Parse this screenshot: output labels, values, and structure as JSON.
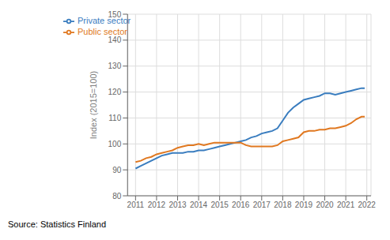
{
  "chart_data": {
    "type": "line",
    "ylabel": "Index (2015=100)",
    "annotation": "Source: Statistics Finland",
    "x": [
      2011.0,
      2011.25,
      2011.5,
      2011.75,
      2012.0,
      2012.25,
      2012.5,
      2012.75,
      2013.0,
      2013.25,
      2013.5,
      2013.75,
      2014.0,
      2014.25,
      2014.5,
      2014.75,
      2015.0,
      2015.25,
      2015.5,
      2015.75,
      2016.0,
      2016.25,
      2016.5,
      2016.75,
      2017.0,
      2017.25,
      2017.5,
      2017.75,
      2018.0,
      2018.25,
      2018.5,
      2018.75,
      2019.0,
      2019.25,
      2019.5,
      2019.75,
      2020.0,
      2020.25,
      2020.5,
      2020.75,
      2021.0,
      2021.25,
      2021.5,
      2021.75,
      2021.9
    ],
    "series": [
      {
        "name": "Private sector",
        "color": "#3a7dbf",
        "values": [
          90.5,
          91.5,
          92.5,
          93.5,
          94.5,
          95.5,
          96.0,
          96.5,
          96.5,
          96.5,
          97.0,
          97.0,
          97.5,
          97.5,
          98.0,
          98.5,
          99.0,
          99.5,
          100.0,
          100.5,
          101.0,
          101.5,
          102.5,
          103.0,
          104.0,
          104.5,
          105.0,
          106.0,
          109.0,
          112.0,
          114.0,
          115.5,
          117.0,
          117.5,
          118.0,
          118.5,
          119.5,
          119.5,
          119.0,
          119.5,
          120.0,
          120.5,
          121.0,
          121.5,
          121.5
        ]
      },
      {
        "name": "Public sector",
        "color": "#e07820",
        "values": [
          93.0,
          93.5,
          94.5,
          95.0,
          96.0,
          96.5,
          97.0,
          97.5,
          98.5,
          99.0,
          99.5,
          99.5,
          100.0,
          99.5,
          100.0,
          100.5,
          100.5,
          100.5,
          100.5,
          100.5,
          100.5,
          99.5,
          99.0,
          99.0,
          99.0,
          99.0,
          99.0,
          99.5,
          101.0,
          101.5,
          102.0,
          102.5,
          104.5,
          105.0,
          105.0,
          105.5,
          105.5,
          106.0,
          106.0,
          106.5,
          107.0,
          108.0,
          109.5,
          110.5,
          110.5
        ]
      }
    ],
    "xlim": [
      2010.62,
      2022.2
    ],
    "xticks": [
      2011,
      2012,
      2013,
      2014,
      2015,
      2016,
      2017,
      2018,
      2019,
      2020,
      2021,
      2022
    ],
    "ylim": [
      80,
      150
    ],
    "yticks": [
      80,
      90,
      100,
      110,
      120,
      130,
      140,
      150
    ],
    "grid": true,
    "legend": "upper left"
  }
}
